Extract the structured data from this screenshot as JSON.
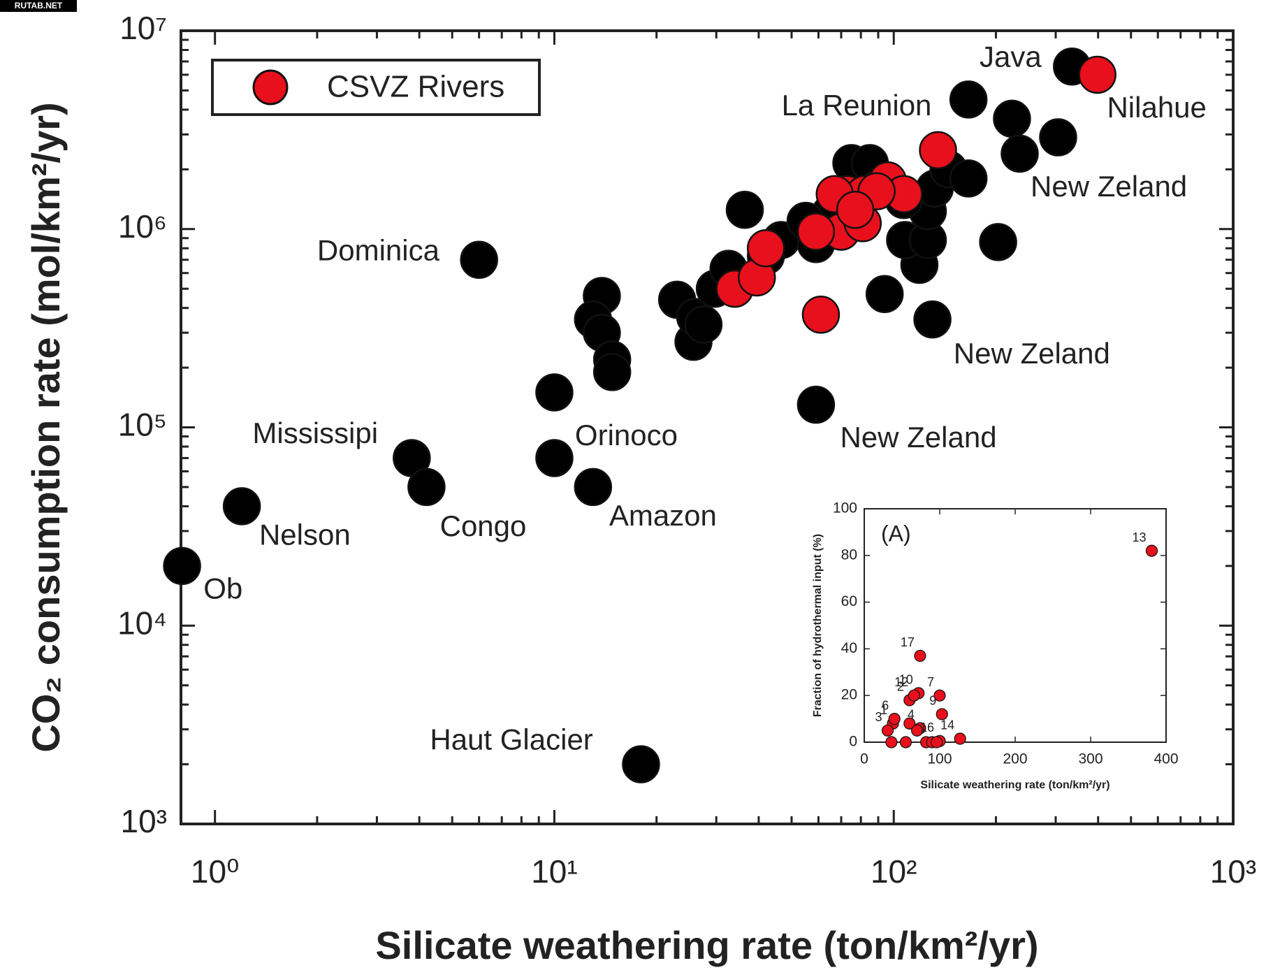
{
  "watermark": "RUTAB.NET",
  "chart_data": [
    {
      "type": "scatter",
      "x_label": "Silicate weathering rate (ton/km²/yr)",
      "y_label": "CO₂ consumption rate (mol/km²/yr)",
      "xscale": "log",
      "yscale": "log",
      "xlim": [
        0.794,
        1000
      ],
      "ylim": [
        1000,
        10000000
      ],
      "xticks": [
        {
          "value": 1,
          "label": "10⁰"
        },
        {
          "value": 10,
          "label": "10¹"
        },
        {
          "value": 100,
          "label": "10²"
        },
        {
          "value": 1000,
          "label": "10³"
        }
      ],
      "yticks": [
        {
          "value": 1000,
          "label": "10³"
        },
        {
          "value": 10000,
          "label": "10⁴"
        },
        {
          "value": 100000,
          "label": "10⁵"
        },
        {
          "value": 1000000,
          "label": "10⁶"
        },
        {
          "value": 10000000,
          "label": "10⁷"
        }
      ],
      "legend": "upper left",
      "series": [
        {
          "color": "#000000",
          "x": [
            0.8,
            1.2,
            3.8,
            4.2,
            6.0,
            18,
            10,
            10,
            13,
            13.8,
            13.0,
            13.8,
            14.8,
            14.8,
            25.7,
            23,
            26,
            27.5,
            29.7,
            36.4,
            32.6,
            46.6,
            58,
            59,
            59,
            94,
            130,
            119,
            108,
            126,
            126,
            203,
            73,
            75,
            85,
            90,
            107,
            132,
            145,
            166,
            166,
            223,
            235,
            305,
            335,
            65,
            55,
            42
          ],
          "values": [
            20000,
            40000,
            70000,
            50000,
            700000,
            2000,
            150000,
            70000,
            50000,
            460000,
            350000,
            300000,
            220000,
            190000,
            270000,
            440000,
            360000,
            330000,
            500000,
            1250000,
            630000,
            880000,
            1000000,
            840000,
            130000,
            470000,
            350000,
            660000,
            880000,
            880000,
            1230000,
            860000,
            1400000,
            2150000,
            2150000,
            1600000,
            1400000,
            1600000,
            2000000,
            1800000,
            4500000,
            3600000,
            2400000,
            2900000,
            6600000,
            1200000,
            1100000,
            730000
          ]
        },
        {
          "name": "CSVZ Rivers",
          "color": "#e8101c",
          "x": [
            398,
            135,
            61,
            34,
            39.5,
            42,
            70,
            59,
            81,
            73,
            82,
            96,
            107,
            89,
            67,
            77
          ],
          "values": [
            6000000,
            2500000,
            370000,
            500000,
            570000,
            800000,
            970000,
            970000,
            1070000,
            1500000,
            1500000,
            1760000,
            1500000,
            1550000,
            1500000,
            1250000
          ]
        }
      ],
      "annotations": [
        {
          "text": "Java",
          "x": 179,
          "y": 7200000
        },
        {
          "text": "La Reunion",
          "x": 46.7,
          "y": 4100000
        },
        {
          "text": "Nilahue",
          "x": 425,
          "y": 4000000
        },
        {
          "text": "New Zeland",
          "x": 253,
          "y": 1600000
        },
        {
          "text": "New Zeland",
          "x": 150,
          "y": 230000
        },
        {
          "text": "New Zeland",
          "x": 69.5,
          "y": 87000
        },
        {
          "text": "Dominica",
          "x": 2.0,
          "y": 760000
        },
        {
          "text": "Mississipi",
          "x": 1.29,
          "y": 91000
        },
        {
          "text": "Orinoco",
          "x": 11.5,
          "y": 89000
        },
        {
          "text": "Congo",
          "x": 4.6,
          "y": 31000
        },
        {
          "text": "Nelson",
          "x": 1.35,
          "y": 28000
        },
        {
          "text": "Amazon",
          "x": 14.5,
          "y": 35000
        },
        {
          "text": "Ob",
          "x": 0.925,
          "y": 15000
        },
        {
          "text": "Haut Glacier",
          "x": 4.3,
          "y": 2600
        }
      ]
    },
    {
      "type": "scatter",
      "title": "(A)",
      "x_label": "Silicate weathering rate (ton/km²/yr)",
      "y_label": "Fraction of hydrothermal input (%)",
      "xlim": [
        0,
        400
      ],
      "ylim": [
        0,
        100
      ],
      "xticks": [
        0,
        100,
        200,
        300,
        400
      ],
      "yticks": [
        0,
        20,
        40,
        60,
        80,
        100
      ],
      "series": [
        {
          "color": "#e8101c",
          "x": [
            38,
            60,
            31,
            74,
            40,
            100,
            103,
            72,
            66,
            381,
            127,
            100,
            74,
            36,
            55,
            60,
            70,
            82,
            90,
            96
          ],
          "values": [
            8,
            18,
            5,
            6,
            10,
            20,
            12,
            21,
            20,
            82,
            1.5,
            0.5,
            37,
            0,
            0,
            8,
            5,
            0,
            0,
            0
          ],
          "labels": [
            "1",
            "2",
            "3",
            "4",
            "6",
            "7",
            "9",
            "10",
            "12",
            "13",
            "14",
            "16",
            "17",
            null,
            null,
            null,
            null,
            null,
            null,
            null
          ]
        }
      ]
    }
  ]
}
